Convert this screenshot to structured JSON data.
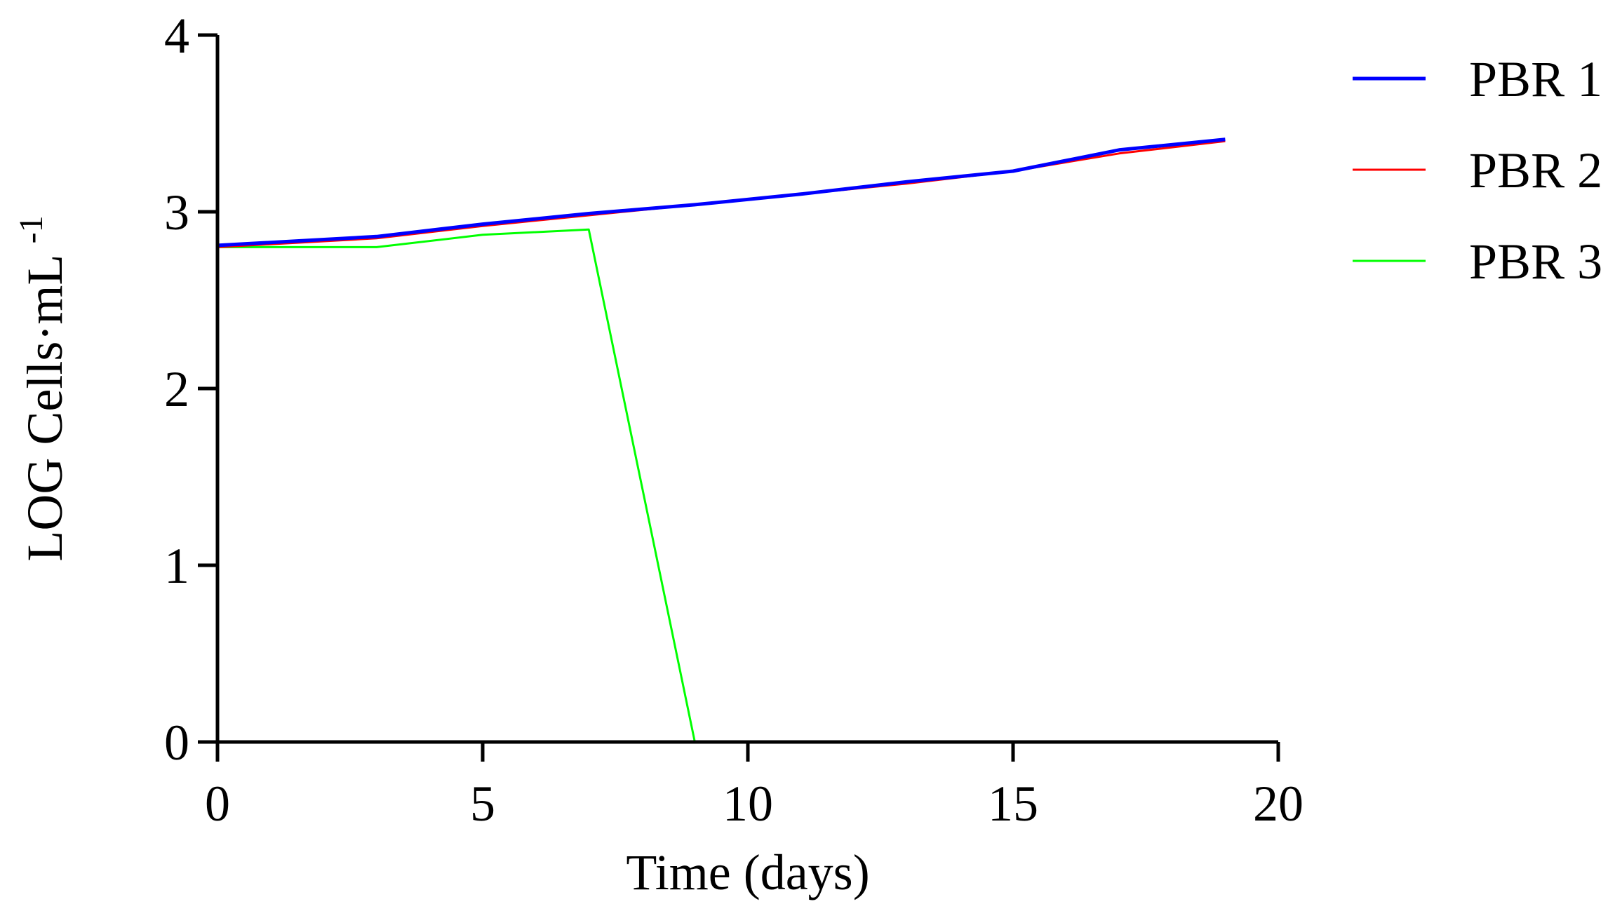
{
  "chart_data": {
    "type": "line",
    "xlabel": "Time (days)",
    "ylabel": {
      "text": "LOG Cells·mL",
      "superscript": "-1"
    },
    "xlim": [
      0,
      20
    ],
    "ylim": [
      0,
      4
    ],
    "xticks": [
      "0",
      "5",
      "10",
      "15",
      "20"
    ],
    "yticks": [
      "0",
      "1",
      "2",
      "3",
      "4"
    ],
    "grid": false,
    "legend_position": "right",
    "series": [
      {
        "name": "PBR 1",
        "color": "#0000ff",
        "points": [
          [
            0,
            2.81
          ],
          [
            3,
            2.86
          ],
          [
            5,
            2.93
          ],
          [
            7,
            2.99
          ],
          [
            9,
            3.04
          ],
          [
            11,
            3.1
          ],
          [
            13,
            3.17
          ],
          [
            15,
            3.23
          ],
          [
            17,
            3.35
          ],
          [
            19,
            3.41
          ]
        ]
      },
      {
        "name": "PBR 2",
        "color": "#ff0000",
        "points": [
          [
            0,
            2.8
          ],
          [
            3,
            2.85
          ],
          [
            5,
            2.92
          ],
          [
            7,
            2.98
          ],
          [
            9,
            3.04
          ],
          [
            11,
            3.1
          ],
          [
            13,
            3.16
          ],
          [
            15,
            3.23
          ],
          [
            17,
            3.33
          ],
          [
            19,
            3.4
          ]
        ]
      },
      {
        "name": "PBR 3",
        "color": "#00ff00",
        "points": [
          [
            0,
            2.8
          ],
          [
            3,
            2.8
          ],
          [
            5,
            2.87
          ],
          [
            7,
            2.9
          ],
          [
            9,
            0
          ],
          [
            11,
            0
          ],
          [
            13,
            0
          ],
          [
            15,
            0
          ],
          [
            17,
            0
          ],
          [
            19,
            0
          ]
        ]
      }
    ]
  }
}
